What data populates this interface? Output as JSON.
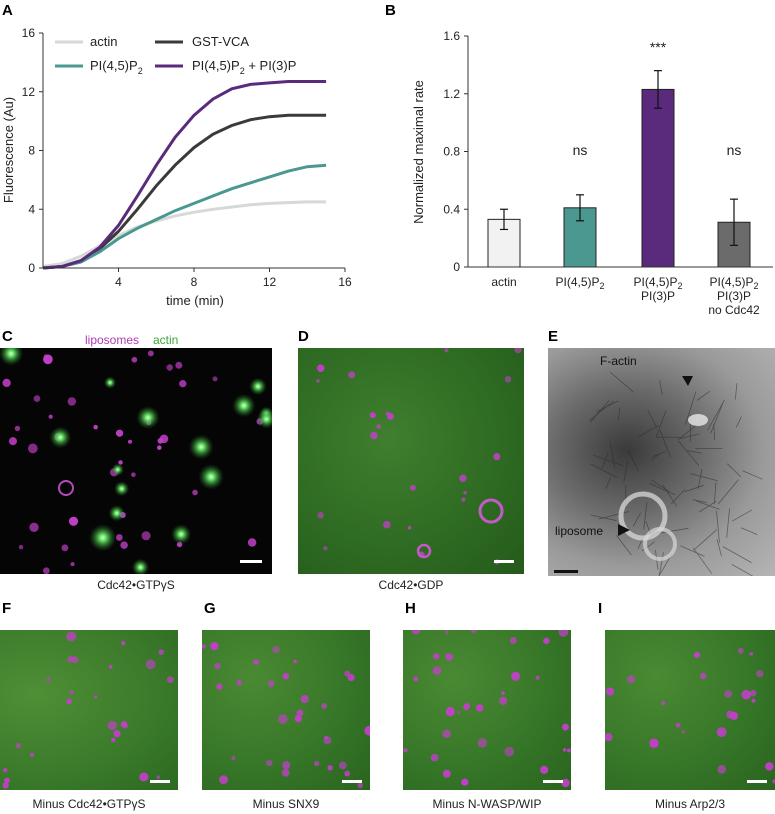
{
  "panels": {
    "a": "A",
    "b": "B",
    "c": "C",
    "d": "D",
    "e": "E",
    "f": "F",
    "g": "G",
    "h": "H",
    "i": "I"
  },
  "colors": {
    "actin": "#d5d9d8",
    "gstvca": "#3a3a3a",
    "pi45": "#4a9890",
    "pi45pi3": "#5a2a7c",
    "bar_actin": "#f2f2f2",
    "bar_noCdc42": "#6b6b6b",
    "liposome_magenta": "#c23fc8",
    "actin_green": "#3d9b3d"
  },
  "chart_a": {
    "type": "line",
    "xlabel": "time (min)",
    "ylabel": "Fluorescence (Au)",
    "xlim": [
      0,
      16
    ],
    "ylim": [
      0,
      16
    ],
    "xticks": [
      "4",
      "8",
      "12",
      "16"
    ],
    "yticks": [
      "0",
      "4",
      "8",
      "12",
      "16"
    ],
    "legend": {
      "actin": "actin",
      "gstvca": "GST-VCA",
      "pi45_main": "PI(4,5)P",
      "pi45_sub": "2",
      "pi45pi3_main": "PI(4,5)P",
      "pi45pi3_sub": "2",
      "pi45pi3_tail": " + PI(3)P"
    }
  },
  "chart_data": [
    {
      "type": "line",
      "xlabel": "time (min)",
      "ylabel": "Fluorescence (Au)",
      "xlim": [
        0,
        16
      ],
      "ylim": [
        0,
        16
      ],
      "x": [
        0,
        1,
        2,
        3,
        4,
        5,
        6,
        7,
        8,
        9,
        10,
        11,
        12,
        13,
        14,
        15
      ],
      "series": [
        {
          "name": "actin",
          "values": [
            0.1,
            0.3,
            0.8,
            1.5,
            2.2,
            2.8,
            3.2,
            3.55,
            3.8,
            4.0,
            4.15,
            4.3,
            4.4,
            4.45,
            4.5,
            4.5
          ]
        },
        {
          "name": "GST-VCA",
          "values": [
            0.0,
            0.1,
            0.5,
            1.3,
            2.5,
            4.0,
            5.6,
            7.0,
            8.2,
            9.1,
            9.7,
            10.1,
            10.3,
            10.4,
            10.4,
            10.4
          ]
        },
        {
          "name": "PI(4,5)P2",
          "values": [
            0.0,
            0.1,
            0.4,
            1.1,
            2.0,
            2.7,
            3.3,
            3.9,
            4.4,
            4.9,
            5.4,
            5.8,
            6.2,
            6.6,
            6.9,
            7.0
          ]
        },
        {
          "name": "PI(4,5)P2 + PI(3)P",
          "values": [
            0.0,
            0.1,
            0.5,
            1.4,
            2.9,
            4.9,
            7.0,
            8.9,
            10.4,
            11.5,
            12.2,
            12.5,
            12.6,
            12.7,
            12.7,
            12.7
          ]
        }
      ]
    },
    {
      "type": "bar",
      "ylabel": "Normalized maximal rate",
      "ylim": [
        0,
        1.6
      ],
      "yticks": [
        "0",
        "0.4",
        "0.8",
        "1.2",
        "1.6"
      ],
      "categories": [
        "actin",
        "PI(4,5)P2",
        "PI(4,5)P2 PI(3)P",
        "PI(4,5)P2 PI(3)P no Cdc42"
      ],
      "values": [
        0.33,
        0.41,
        1.23,
        0.31
      ],
      "errors": [
        0.07,
        0.09,
        0.13,
        0.16
      ],
      "significance": [
        "",
        "ns",
        "***",
        "ns"
      ]
    }
  ],
  "chart_b": {
    "ylabel": "Normalized maximal rate",
    "yticks": [
      "0",
      "0.4",
      "0.8",
      "1.2",
      "1.6"
    ],
    "cat_actin": "actin",
    "cat2_l1_main": "PI(4,5)P",
    "cat2_l1_sub": "2",
    "cat3_l1_main": "PI(4,5)P",
    "cat3_l1_sub": "2",
    "cat3_l2": "PI(3)P",
    "cat4_l1_main": "PI(4,5)P",
    "cat4_l1_sub": "2",
    "cat4_l2": "PI(3)P",
    "cat4_l3": "no Cdc42",
    "sig2": "ns",
    "sig3": "***",
    "sig4": "ns"
  },
  "micro": {
    "c_legend_liposomes": "liposomes",
    "c_legend_actin": "actin",
    "c_caption": "Cdc42•GTPγS",
    "d_caption": "Cdc42•GDP",
    "e_factin": "F-actin",
    "e_liposome": "liposome",
    "f_caption": "Minus Cdc42•GTPγS",
    "g_caption": "Minus SNX9",
    "h_caption": "Minus N-WASP/WIP",
    "i_caption": "Minus Arp2/3"
  }
}
